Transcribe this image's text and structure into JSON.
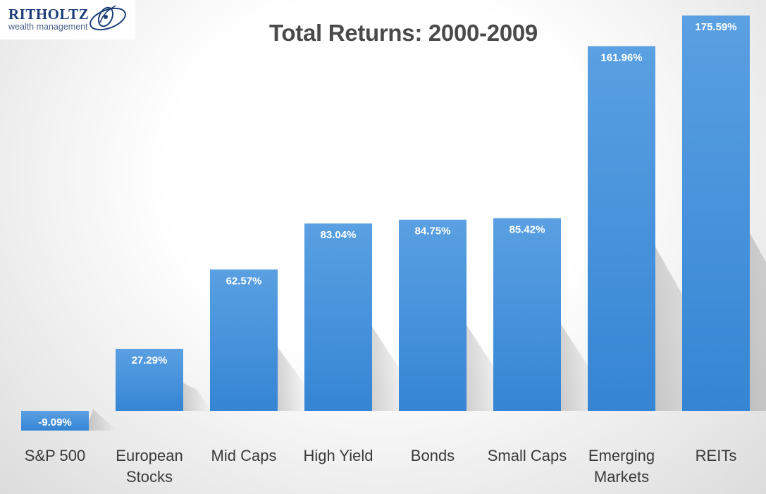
{
  "logo": {
    "name": "RITHOLTZ",
    "tagline": "wealth management"
  },
  "chart_data": {
    "type": "bar",
    "title": "Total Returns: 2000-2009",
    "xlabel": "",
    "ylabel": "",
    "categories": [
      [
        "S&P 500"
      ],
      [
        "European",
        "Stocks"
      ],
      [
        "Mid Caps"
      ],
      [
        "High Yield"
      ],
      [
        "Bonds"
      ],
      [
        "Small Caps"
      ],
      [
        "Emerging",
        "Markets"
      ],
      [
        "REITs"
      ]
    ],
    "values": [
      -9.09,
      27.29,
      62.57,
      83.04,
      84.75,
      85.42,
      161.96,
      175.59
    ],
    "data_labels": [
      "-9.09%",
      "27.29%",
      "62.57%",
      "83.04%",
      "84.75%",
      "85.42%",
      "161.96%",
      "175.59%"
    ],
    "ylim": [
      -9.09,
      175.59
    ],
    "grid": false,
    "bar_color": "#4a90d9",
    "bar_color_dark": "#2f7bcc"
  }
}
